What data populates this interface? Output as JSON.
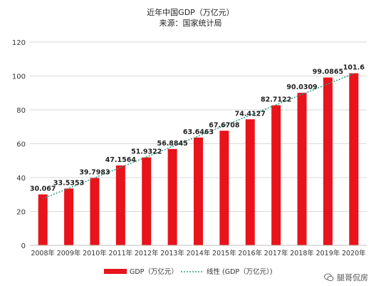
{
  "chart_data": {
    "type": "bar",
    "title": "近年中国GDP（万亿元）",
    "subtitle": "来源：国家统计局",
    "categories": [
      "2008年",
      "2009年",
      "2010年",
      "2011年",
      "2012年",
      "2013年",
      "2014年",
      "2015年",
      "2016年",
      "2017年",
      "2018年",
      "2019年",
      "2020年"
    ],
    "series": [
      {
        "name": "GDP（万亿元）",
        "values": [
          30.067,
          33.5353,
          39.7983,
          47.1564,
          51.9322,
          56.8845,
          63.6463,
          67.6708,
          74.4127,
          82.7122,
          90.0309,
          99.0865,
          101.6
        ],
        "labels": [
          "30.067",
          "33.5353",
          "39.7983",
          "47.1564",
          "51.9322",
          "56.8845",
          "63.6463",
          "67.6708",
          "74.4127",
          "82.7122",
          "90.0309",
          "99.0865",
          "101.6"
        ],
        "color": "#e8131b"
      }
    ],
    "trendline": {
      "name": "线性 (GDP（万亿元）)",
      "type": "linear",
      "color": "#2aa08a"
    },
    "yticks": [
      "0",
      "20",
      "40",
      "60",
      "80",
      "100",
      "120"
    ],
    "ylim": [
      0,
      120
    ],
    "grid": true,
    "legend": "bottom"
  },
  "watermark": {
    "text": "腿哥侃房",
    "icon": "wechat-icon"
  }
}
